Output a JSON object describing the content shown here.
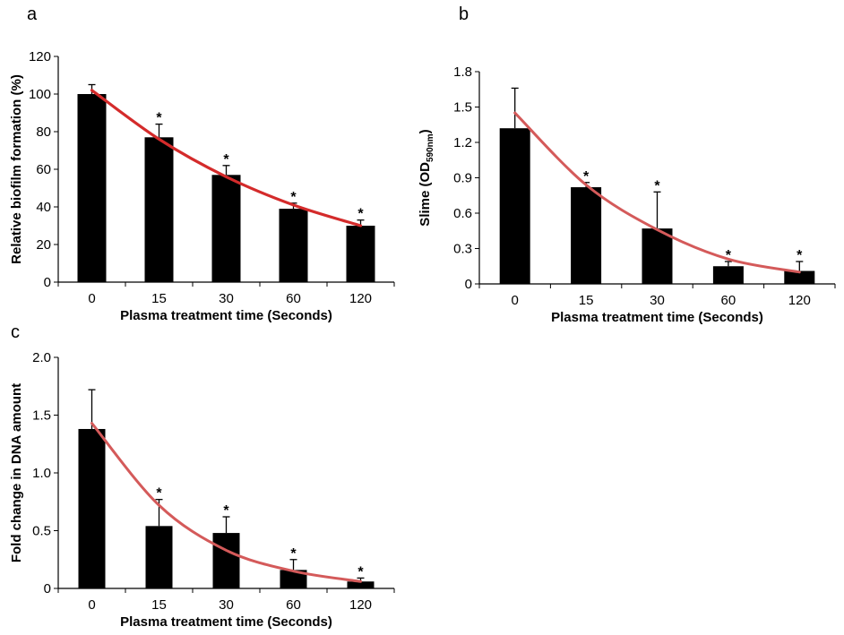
{
  "colors": {
    "bar": "#000000",
    "fit_line_a": "#d42b2b",
    "fit_line_bc": "#d45a5a",
    "axis": "#000000"
  },
  "chart_data": [
    {
      "panel_label": "a",
      "type": "bar",
      "categories": [
        "0",
        "15",
        "30",
        "60",
        "120"
      ],
      "values": [
        100,
        77,
        57,
        39,
        30
      ],
      "errors": [
        5,
        7,
        5,
        3,
        3
      ],
      "significance": [
        "",
        "*",
        "*",
        "*",
        "*"
      ],
      "fit_curve": [
        102,
        76,
        56,
        41,
        30
      ],
      "xlabel": "Plasma treatment time (Seconds)",
      "ylabel": "Relative biofilm formation (%)",
      "ylim": [
        0,
        120
      ],
      "yticks": [
        "0",
        "20",
        "40",
        "60",
        "80",
        "100",
        "120"
      ],
      "grid": false
    },
    {
      "panel_label": "b",
      "type": "bar",
      "categories": [
        "0",
        "15",
        "30",
        "60",
        "120"
      ],
      "values": [
        1.32,
        0.82,
        0.47,
        0.15,
        0.11
      ],
      "errors": [
        0.34,
        0.04,
        0.31,
        0.04,
        0.08
      ],
      "significance": [
        "",
        "*",
        "*",
        "*",
        "*"
      ],
      "fit_curve": [
        1.45,
        0.84,
        0.46,
        0.21,
        0.1
      ],
      "xlabel": "Plasma treatment time (Seconds)",
      "ylabel_prefix": "Slime (OD",
      "ylabel_sub": "590nm",
      "ylabel_suffix": ")",
      "ylim": [
        0,
        1.8
      ],
      "yticks": [
        "0",
        "0.3",
        "0.6",
        "0.9",
        "1.2",
        "1.5",
        "1.8"
      ],
      "grid": false
    },
    {
      "panel_label": "c",
      "type": "bar",
      "categories": [
        "0",
        "15",
        "30",
        "60",
        "120"
      ],
      "values": [
        1.38,
        0.54,
        0.48,
        0.16,
        0.06
      ],
      "errors": [
        0.34,
        0.23,
        0.14,
        0.09,
        0.03
      ],
      "significance": [
        "",
        "*",
        "*",
        "*",
        "*"
      ],
      "fit_curve": [
        1.43,
        0.72,
        0.33,
        0.15,
        0.06
      ],
      "xlabel": "Plasma treatment time (Seconds)",
      "ylabel": "Fold change in DNA amount",
      "ylim": [
        0,
        2.0
      ],
      "yticks": [
        "0",
        "0.5",
        "1.0",
        "1.5",
        "2.0"
      ],
      "grid": false
    }
  ]
}
